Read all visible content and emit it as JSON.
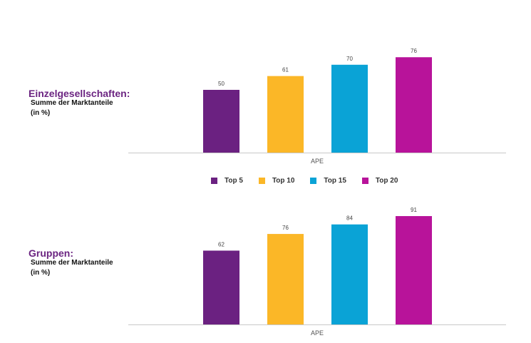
{
  "chart_data": [
    {
      "type": "bar",
      "panel_title": "Einzelgesellschaften:",
      "panel_subtitle": "Summe der Marktanteile (in %)",
      "categories": [
        "APE"
      ],
      "series": [
        {
          "name": "Top 5",
          "values": [
            50
          ]
        },
        {
          "name": "Top 10",
          "values": [
            61
          ]
        },
        {
          "name": "Top 15",
          "values": [
            70
          ]
        },
        {
          "name": "Top 20",
          "values": [
            76
          ]
        }
      ],
      "data_labels": true,
      "grid": false,
      "legend": "bottom"
    },
    {
      "type": "bar",
      "panel_title": "Gruppen:",
      "panel_subtitle": "Summe der Marktanteile (in %)",
      "categories": [
        "APE"
      ],
      "series": [
        {
          "name": "Top 5",
          "values": [
            62
          ]
        },
        {
          "name": "Top 10",
          "values": [
            76
          ]
        },
        {
          "name": "Top 15",
          "values": [
            84
          ]
        },
        {
          "name": "Top 20",
          "values": [
            91
          ]
        }
      ],
      "data_labels": true,
      "grid": false,
      "legend": "bottom"
    }
  ],
  "legend": [
    "Top 5",
    "Top 10",
    "Top 15",
    "Top 20"
  ],
  "colors": [
    "#6b2181",
    "#fbb727",
    "#0aa3d6",
    "#b8139a"
  ],
  "title_color": "#6b2481"
}
